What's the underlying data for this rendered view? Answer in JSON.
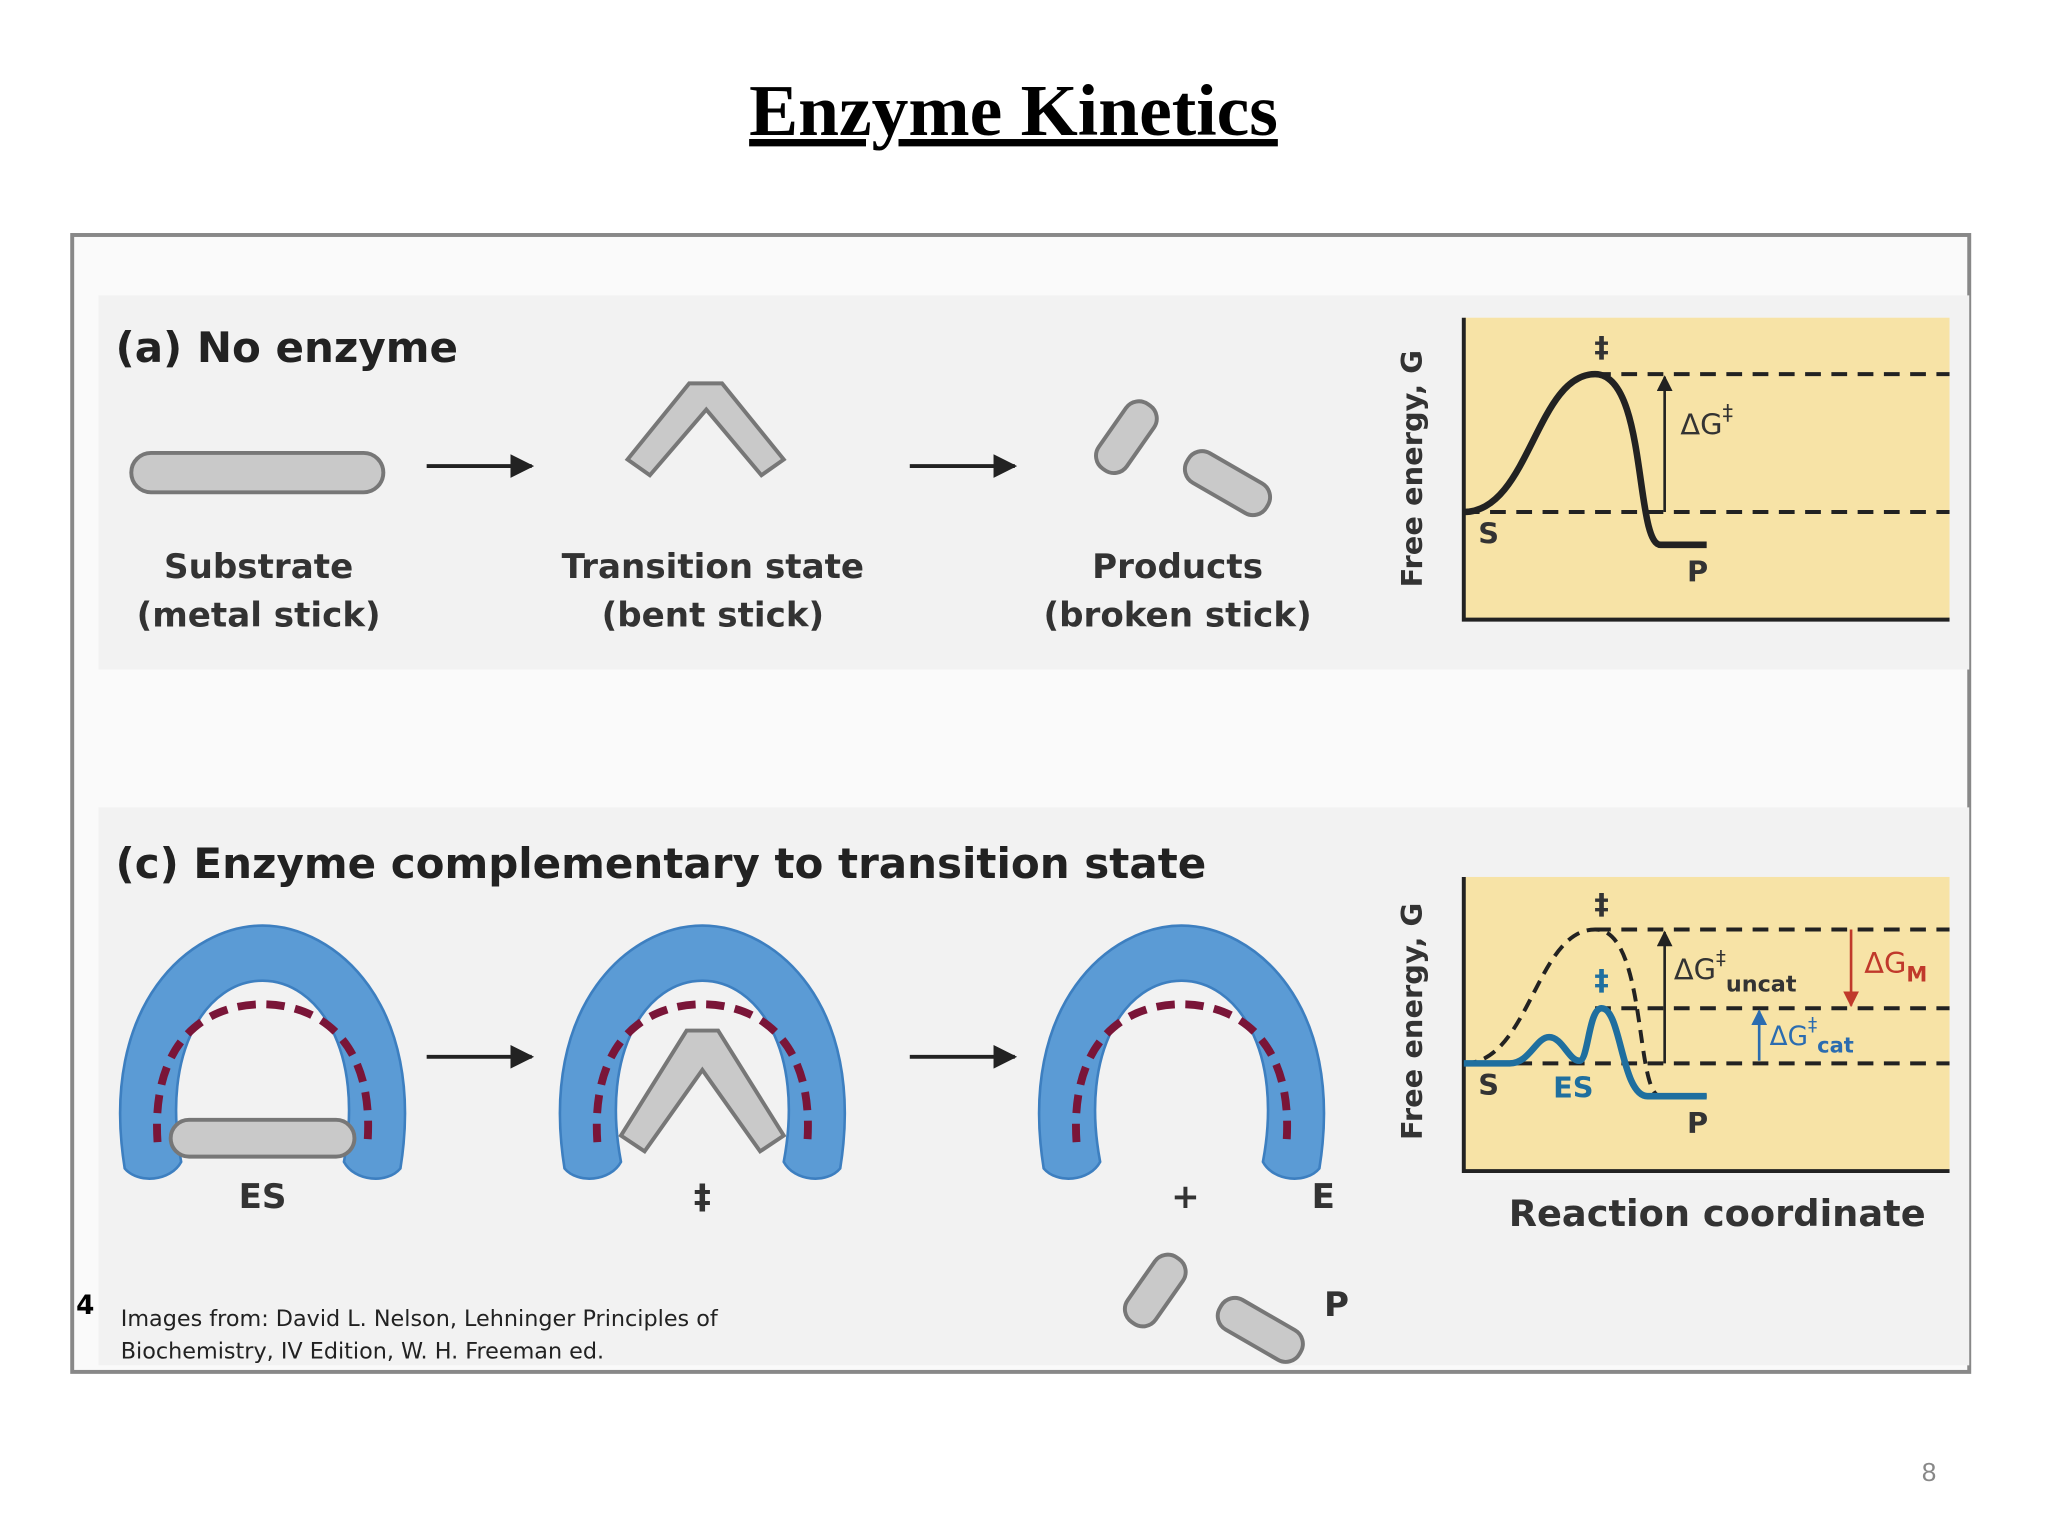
{
  "title": "Enzyme Kinetics",
  "panel_a": {
    "heading": "(a) No enzyme",
    "steps": [
      {
        "name": "Substrate",
        "note": "(metal stick)"
      },
      {
        "name": "Transition state",
        "note": "(bent stick)"
      },
      {
        "name": "Products",
        "note": "(broken stick)"
      }
    ],
    "graph": {
      "y_label": "Free energy, G",
      "ts_mark": "‡",
      "barrier": {
        "symbol": "ΔG",
        "sup": "‡"
      },
      "start": "S",
      "end": "P"
    }
  },
  "panel_c": {
    "heading": "(c) Enzyme complementary to transition state",
    "labels": {
      "es": "ES",
      "ts": "‡",
      "plus": "+",
      "enzyme": "E",
      "product": "P"
    },
    "graph": {
      "y_label": "Free energy, G",
      "uncat_mark": "‡",
      "cat_mark": "‡",
      "uncat": {
        "symbol": "ΔG",
        "sup": "‡",
        "sub": "uncat"
      },
      "binding": {
        "symbol": "ΔG",
        "sub": "M"
      },
      "cat": {
        "symbol": "ΔG",
        "sup": "‡",
        "sub": "cat"
      },
      "start": "S",
      "intermediate": "ES",
      "end": "P",
      "x_label": "Reaction coordinate"
    }
  },
  "footnote_number": "4",
  "citation": [
    "Images from: David L. Nelson, Lehninger Principles of",
    "Biochemistry, IV Edition, W. H. Freeman ed."
  ],
  "page_number": "8"
}
